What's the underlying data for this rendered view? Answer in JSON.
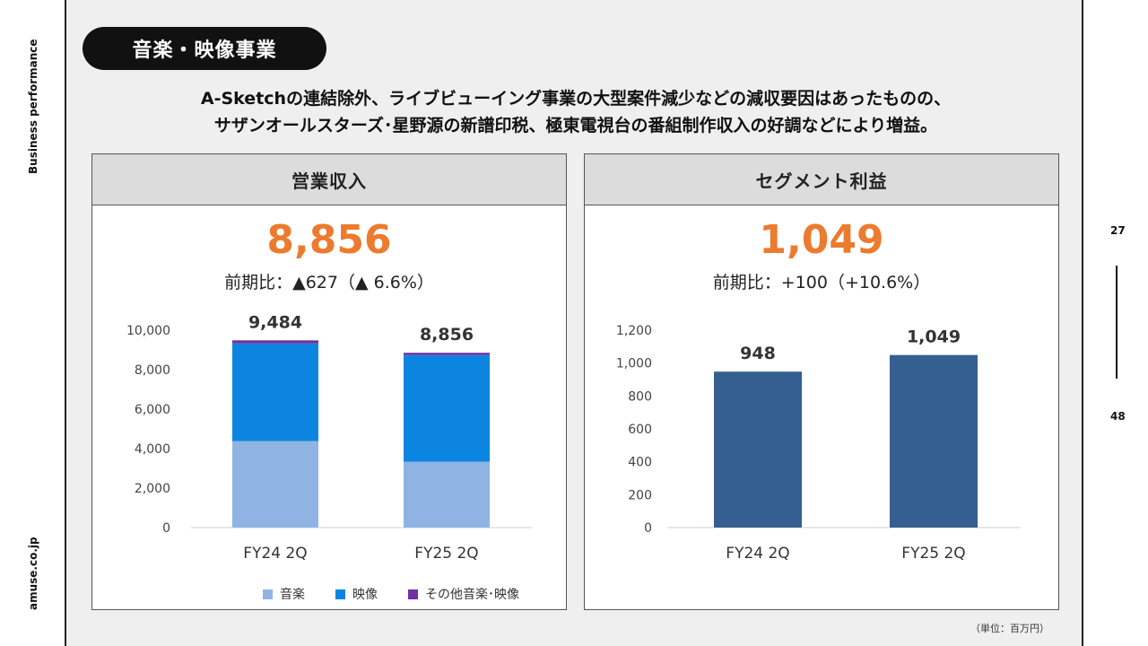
{
  "sidebar": {
    "category": "Business performance",
    "site": "amuse.co.jp"
  },
  "pager": {
    "current": "27",
    "total": "48"
  },
  "section_title": "音楽・映像事業",
  "headline": {
    "line1": "A-Sketchの連結除外、ライブビューイング事業の大型案件減少などの減収要因はあったものの、",
    "line2": "サザンオールスターズ･星野源の新譜印税、極東電視台の番組制作収入の好調などにより増益。"
  },
  "unit_note": "（単位：百万円）",
  "panels": {
    "revenue": {
      "title": "営業収入",
      "value": "8,856",
      "yoy": "前期比：▲627（▲ 6.6%）",
      "legend": [
        "音楽",
        "映像",
        "その他音楽･映像"
      ]
    },
    "profit": {
      "title": "セグメント利益",
      "value": "1,049",
      "yoy": "前期比：+100（+10.6%）"
    }
  },
  "chart_data": [
    {
      "type": "bar",
      "stacked": true,
      "categories": [
        "FY24 2Q",
        "FY25 2Q"
      ],
      "series": [
        {
          "name": "音楽",
          "color": "#8fb4e3",
          "values": [
            4380,
            3340
          ]
        },
        {
          "name": "映像",
          "color": "#0b85e0",
          "values": [
            4950,
            5400
          ]
        },
        {
          "name": "その他音楽･映像",
          "color": "#7030a0",
          "values": [
            154,
            116
          ]
        }
      ],
      "totals": [
        9484,
        8856
      ],
      "total_labels": [
        "9,484",
        "8,856"
      ],
      "ylim": [
        0,
        10000
      ],
      "yticks": [
        0,
        2000,
        4000,
        6000,
        8000,
        10000
      ],
      "ytick_labels": [
        "0",
        "2,000",
        "4,000",
        "6,000",
        "8,000",
        "10,000"
      ],
      "grid": false,
      "legend": "bottom"
    },
    {
      "type": "bar",
      "categories": [
        "FY24 2Q",
        "FY25 2Q"
      ],
      "series": [
        {
          "color": "#365f91",
          "values": [
            948,
            1049
          ]
        }
      ],
      "value_labels": [
        "948",
        "1,049"
      ],
      "ylim": [
        0,
        1200
      ],
      "yticks": [
        0,
        200,
        400,
        600,
        800,
        1000,
        1200
      ],
      "ytick_labels": [
        "0",
        "200",
        "400",
        "600",
        "800",
        "1,000",
        "1,200"
      ],
      "grid": false,
      "legend": "none"
    }
  ]
}
